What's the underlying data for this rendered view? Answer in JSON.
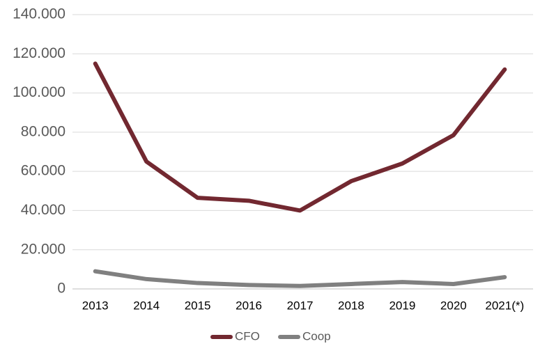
{
  "chart_data": {
    "type": "line",
    "categories": [
      "2013",
      "2014",
      "2015",
      "2016",
      "2017",
      "2018",
      "2019",
      "2020",
      "2021(*)"
    ],
    "series": [
      {
        "name": "CFO",
        "color": "#722830",
        "values": [
          115000,
          65000,
          46500,
          45000,
          40000,
          55000,
          64000,
          78500,
          112000
        ]
      },
      {
        "name": "Coop",
        "color": "#808080",
        "values": [
          9000,
          5000,
          3000,
          2000,
          1500,
          2500,
          3500,
          2500,
          6000
        ]
      }
    ],
    "ylim": [
      0,
      140000
    ],
    "yticks": [
      0,
      {
        "value": 20000,
        "label": "20.000"
      },
      {
        "value": 40000,
        "label": "40.000"
      },
      {
        "value": 60000,
        "label": "60.000"
      },
      {
        "value": 80000,
        "label": "80.000"
      },
      {
        "value": 100000,
        "label": "100.000"
      },
      {
        "value": 120000,
        "label": "120.000"
      },
      {
        "value": 140000,
        "label": "140.000"
      }
    ],
    "grid": true,
    "legend": "bottom"
  }
}
